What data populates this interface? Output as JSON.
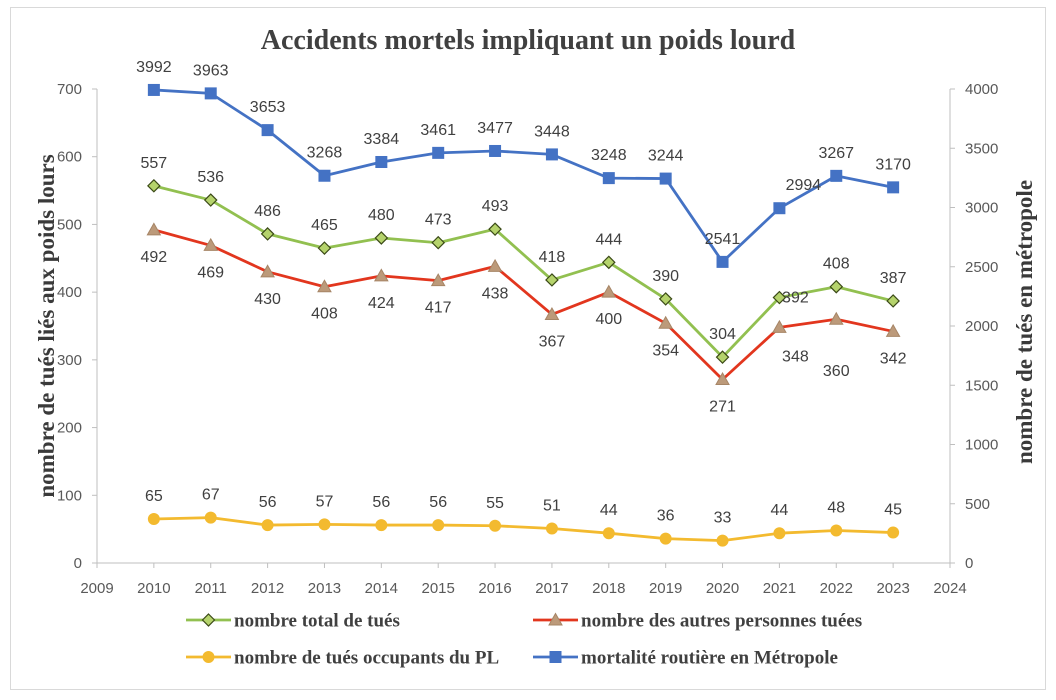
{
  "chart_data": {
    "type": "line",
    "title": "Accidents mortels impliquant un poids lourd",
    "x": [
      2010,
      2011,
      2012,
      2013,
      2014,
      2015,
      2016,
      2017,
      2018,
      2019,
      2020,
      2021,
      2022,
      2023
    ],
    "x_axis": {
      "range": [
        2009,
        2024
      ],
      "ticks": [
        2009,
        2010,
        2011,
        2012,
        2013,
        2014,
        2015,
        2016,
        2017,
        2018,
        2019,
        2020,
        2021,
        2022,
        2023,
        2024
      ]
    },
    "y_left": {
      "label": "nombre de tués liés aux poids lours",
      "range": [
        0,
        700
      ],
      "ticks": [
        0,
        100,
        200,
        300,
        400,
        500,
        600,
        700
      ]
    },
    "y_right": {
      "label": "nombre de tués en métropole",
      "range": [
        0,
        4000
      ],
      "ticks": [
        0,
        500,
        1000,
        1500,
        2000,
        2500,
        3000,
        3500,
        4000
      ]
    },
    "grid": false,
    "data_labels": true,
    "legend": {
      "position": "bottom"
    },
    "series": [
      {
        "name": "nombre total de tués",
        "axis": "left",
        "color": "#92C050",
        "marker": "diamond",
        "marker_fill": "#B5D36C",
        "marker_edge": "#3B4A17",
        "values": [
          557,
          536,
          486,
          465,
          480,
          473,
          493,
          418,
          444,
          390,
          304,
          392,
          408,
          387
        ]
      },
      {
        "name": "nombre des autres personnes tuées",
        "axis": "left",
        "color": "#E2361E",
        "marker": "triangle",
        "marker_fill": "#BC9A7A",
        "marker_edge": "#A68566",
        "values": [
          492,
          469,
          430,
          408,
          424,
          417,
          438,
          367,
          400,
          354,
          271,
          348,
          360,
          342
        ]
      },
      {
        "name": "nombre de tués occupants du PL",
        "axis": "left",
        "color": "#F3BA2F",
        "marker": "circle",
        "marker_fill": "#F3BA2F",
        "marker_edge": "#F3BA2F",
        "values": [
          65,
          67,
          56,
          57,
          56,
          56,
          55,
          51,
          44,
          36,
          33,
          44,
          48,
          45
        ]
      },
      {
        "name": "mortalité routière en Métropole",
        "axis": "right",
        "color": "#4472C4",
        "marker": "square",
        "marker_fill": "#4472C4",
        "marker_edge": "#4472C4",
        "values": [
          3992,
          3963,
          3653,
          3268,
          3384,
          3461,
          3477,
          3448,
          3248,
          3244,
          2541,
          2994,
          3267,
          3170
        ]
      }
    ]
  }
}
